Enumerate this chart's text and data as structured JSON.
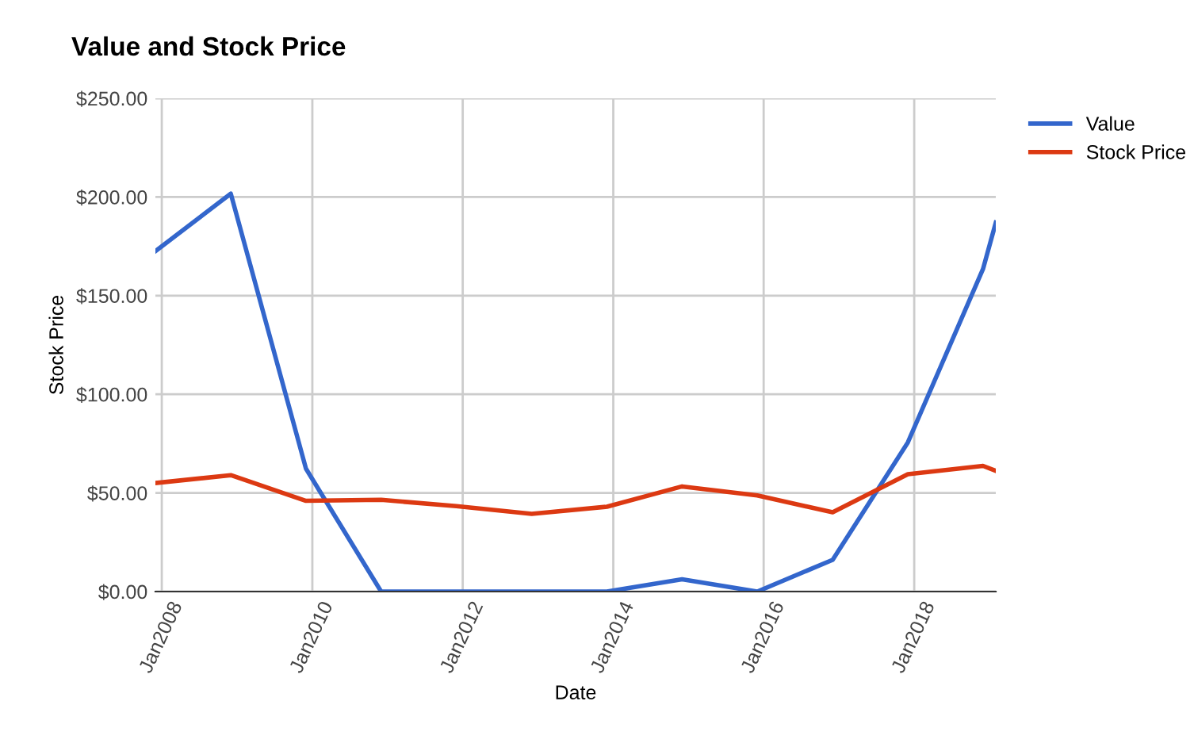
{
  "chart_data": {
    "type": "line",
    "title": "Value and Stock Price",
    "xlabel": "Date",
    "ylabel": "Stock Price",
    "x": [
      "2007-12",
      "2008-12",
      "2009-12",
      "2010-12",
      "2011-12",
      "2012-12",
      "2013-12",
      "2014-12",
      "2015-12",
      "2016-12",
      "2017-12",
      "2018-12",
      "2019-02"
    ],
    "series": [
      {
        "name": "Value",
        "color": "#3366cc",
        "values": [
          172.5,
          201.7,
          62.3,
          0,
          0,
          0,
          0,
          6.2,
          0,
          16.1,
          75.6,
          163.5,
          187
        ]
      },
      {
        "name": "Stock Price",
        "color": "#dc3912",
        "values": [
          55,
          59,
          46,
          46.5,
          43.3,
          39.4,
          43,
          53.3,
          48.7,
          40.2,
          59.5,
          63.7,
          61.2
        ]
      }
    ],
    "xlim": [
      "2007-12",
      "2019-02"
    ],
    "xticks": [
      {
        "value": "2008-01",
        "label": "Jan2008"
      },
      {
        "value": "2010-01",
        "label": "Jan2010"
      },
      {
        "value": "2012-01",
        "label": "Jan2012"
      },
      {
        "value": "2014-01",
        "label": "Jan2014"
      },
      {
        "value": "2016-01",
        "label": "Jan2016"
      },
      {
        "value": "2018-01",
        "label": "Jan2018"
      }
    ],
    "ylim": [
      0,
      250
    ],
    "yticks": [
      {
        "value": 0,
        "label": "$0.00"
      },
      {
        "value": 50,
        "label": "$50.00"
      },
      {
        "value": 100,
        "label": "$100.00"
      },
      {
        "value": 150,
        "label": "$150.00"
      },
      {
        "value": 200,
        "label": "$200.00"
      },
      {
        "value": 250,
        "label": "$250.00"
      }
    ],
    "grid": true,
    "legend": "top right",
    "marker": "none",
    "line_style": "solid"
  }
}
